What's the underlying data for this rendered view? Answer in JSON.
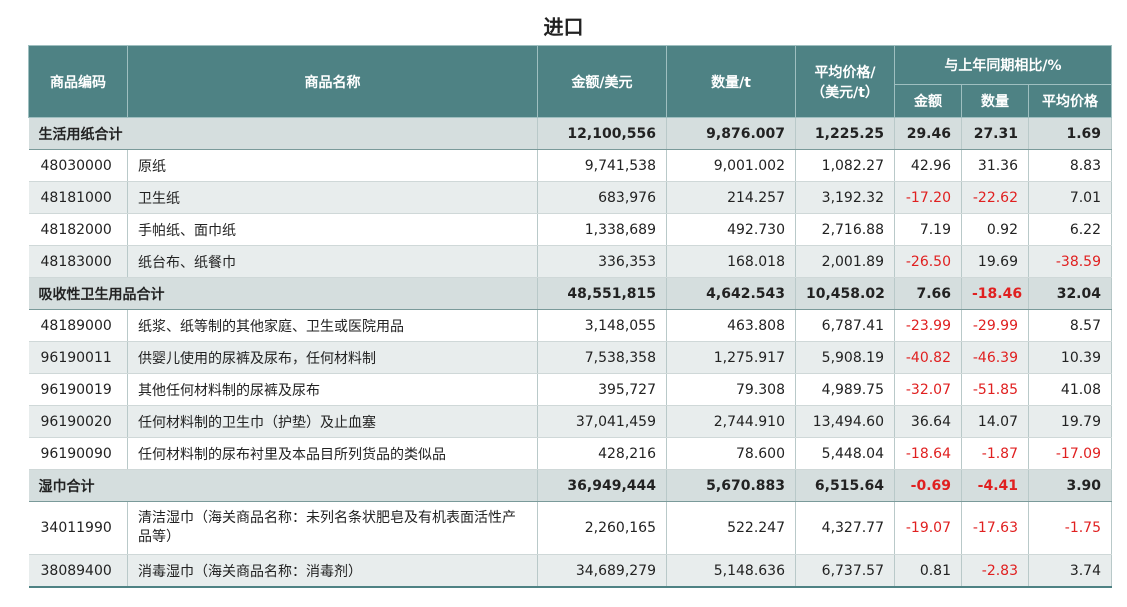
{
  "title": "进口",
  "headers": {
    "code": "商品编码",
    "name": "商品名称",
    "amount": "金额/美元",
    "qty": "数量/t",
    "price_l1": "平均价格/",
    "price_l2": "（美元/t）",
    "yoy": "与上年同期相比/%",
    "yoy_amount": "金额",
    "yoy_qty": "数量",
    "yoy_price": "平均价格"
  },
  "rows": [
    {
      "type": "sum",
      "name": "生活用纸合计",
      "amount": "12,100,556",
      "qty": "9,876.007",
      "price": "1,225.25",
      "ya": "29.46",
      "yq": "27.31",
      "yp": "1.69"
    },
    {
      "type": "item",
      "code": "48030000",
      "name": "原纸",
      "amount": "9,741,538",
      "qty": "9,001.002",
      "price": "1,082.27",
      "ya": "42.96",
      "yq": "31.36",
      "yp": "8.83"
    },
    {
      "type": "item",
      "code": "48181000",
      "name": "卫生纸",
      "amount": "683,976",
      "qty": "214.257",
      "price": "3,192.32",
      "ya": "-17.20",
      "yq": "-22.62",
      "yp": "7.01"
    },
    {
      "type": "item",
      "code": "48182000",
      "name": "手帕纸、面巾纸",
      "amount": "1,338,689",
      "qty": "492.730",
      "price": "2,716.88",
      "ya": "7.19",
      "yq": "0.92",
      "yp": "6.22"
    },
    {
      "type": "item",
      "code": "48183000",
      "name": "纸台布、纸餐巾",
      "amount": "336,353",
      "qty": "168.018",
      "price": "2,001.89",
      "ya": "-26.50",
      "yq": "19.69",
      "yp": "-38.59"
    },
    {
      "type": "sum",
      "name": "吸收性卫生用品合计",
      "amount": "48,551,815",
      "qty": "4,642.543",
      "price": "10,458.02",
      "ya": "7.66",
      "yq": "-18.46",
      "yp": "32.04"
    },
    {
      "type": "item",
      "code": "48189000",
      "name": "纸浆、纸等制的其他家庭、卫生或医院用品",
      "amount": "3,148,055",
      "qty": "463.808",
      "price": "6,787.41",
      "ya": "-23.99",
      "yq": "-29.99",
      "yp": "8.57"
    },
    {
      "type": "item",
      "code": "96190011",
      "name": "供婴儿使用的尿裤及尿布，任何材料制",
      "amount": "7,538,358",
      "qty": "1,275.917",
      "price": "5,908.19",
      "ya": "-40.82",
      "yq": "-46.39",
      "yp": "10.39"
    },
    {
      "type": "item",
      "code": "96190019",
      "name": "其他任何材料制的尿裤及尿布",
      "amount": "395,727",
      "qty": "79.308",
      "price": "4,989.75",
      "ya": "-32.07",
      "yq": "-51.85",
      "yp": "41.08"
    },
    {
      "type": "item",
      "code": "96190020",
      "name": "任何材料制的卫生巾（护垫）及止血塞",
      "amount": "37,041,459",
      "qty": "2,744.910",
      "price": "13,494.60",
      "ya": "36.64",
      "yq": "14.07",
      "yp": "19.79"
    },
    {
      "type": "item",
      "code": "96190090",
      "name": "任何材料制的尿布衬里及本品目所列货品的类似品",
      "amount": "428,216",
      "qty": "78.600",
      "price": "5,448.04",
      "ya": "-18.64",
      "yq": "-1.87",
      "yp": "-17.09"
    },
    {
      "type": "sum",
      "name": "湿巾合计",
      "amount": "36,949,444",
      "qty": "5,670.883",
      "price": "6,515.64",
      "ya": "-0.69",
      "yq": "-4.41",
      "yp": "3.90"
    },
    {
      "type": "item",
      "code": "34011990",
      "name": "清洁湿巾（海关商品名称：未列名条状肥皂及有机表面活性产品等）",
      "amount": "2,260,165",
      "qty": "522.247",
      "price": "4,327.77",
      "ya": "-19.07",
      "yq": "-17.63",
      "yp": "-1.75",
      "tall": true
    },
    {
      "type": "item",
      "code": "38089400",
      "name": "消毒湿巾（海关商品名称：消毒剂）",
      "amount": "34,689,279",
      "qty": "5,148.636",
      "price": "6,737.57",
      "ya": "0.81",
      "yq": "-2.83",
      "yp": "3.74"
    }
  ],
  "colors": {
    "header_bg": "#4e8284",
    "negative": "#e02020",
    "sum_bg": "#d5dede",
    "alt_bg": "#e8eded"
  }
}
